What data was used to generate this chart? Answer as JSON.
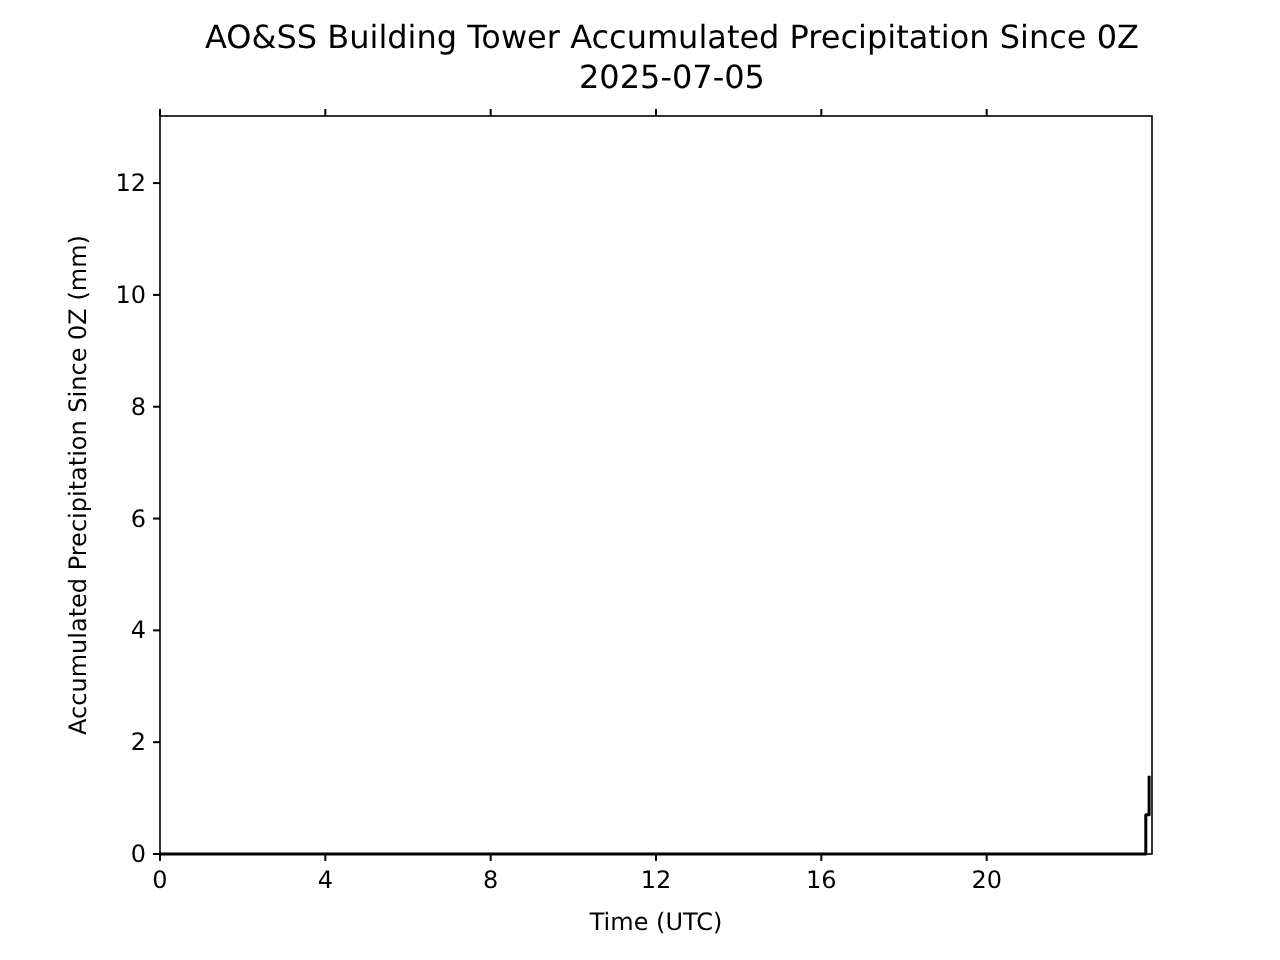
{
  "chart_data": {
    "type": "line",
    "title": "AO&SS Building Tower Accumulated Precipitation Since 0Z",
    "subtitle": "2025-07-05",
    "xlabel": "Time (UTC)",
    "ylabel": "Accumulated Precipitation Since 0Z (mm)",
    "x": [
      0,
      23.85,
      23.85,
      23.93,
      23.93
    ],
    "series": [
      {
        "color": "#000000",
        "values": [
          0,
          0,
          0.7,
          0.7,
          1.4
        ]
      }
    ],
    "xlim": [
      0,
      24
    ],
    "xticks": [
      0,
      4,
      8,
      12,
      16,
      20
    ],
    "ylim": [
      0,
      13.2
    ],
    "yticks": [
      0,
      2,
      4,
      6,
      8,
      10,
      12
    ]
  }
}
